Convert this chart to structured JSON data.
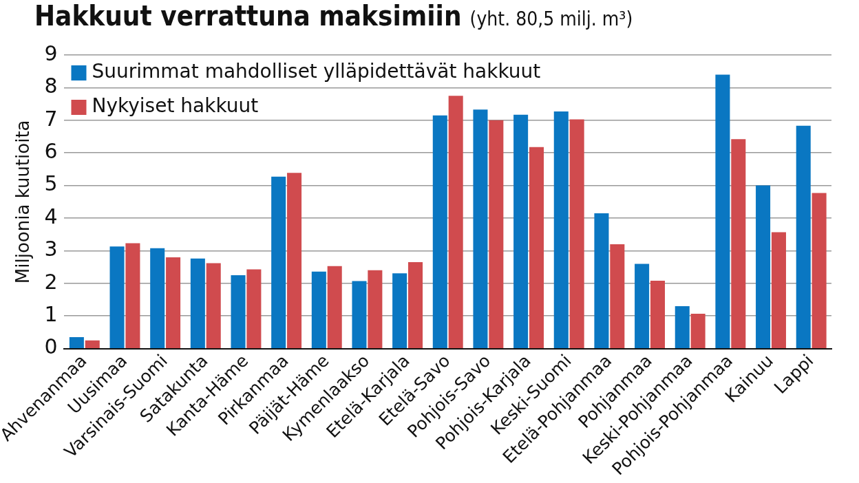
{
  "chart_data": {
    "type": "bar",
    "title": "Hakkuut verrattuna maksimiin",
    "subtitle": "(yht. 80,5 milj. m³)",
    "ylabel": "Miljoonia kuutioita",
    "categories": [
      "Ahvenanmaa",
      "Uusimaa",
      "Varsinais-Suomi",
      "Satakunta",
      "Kanta-Häme",
      "Pirkanmaa",
      "Päijät-Häme",
      "Kymenlaakso",
      "Etelä-Karjala",
      "Etelä-Savo",
      "Pohjois-Savo",
      "Pohjois-Karjala",
      "Keski-Suomi",
      "Etelä-Pohjanmaa",
      "Pohjanmaa",
      "Keski-Pohjanmaa",
      "Pohjois-Pohjanmaa",
      "Kainuu",
      "Lappi"
    ],
    "series": [
      {
        "name": "Suurimmat mahdolliset ylläpidettävät hakkuut",
        "color": "#0a77c2",
        "values": [
          0.35,
          3.13,
          3.08,
          2.76,
          2.25,
          5.27,
          2.36,
          2.07,
          2.31,
          7.15,
          7.33,
          7.17,
          7.27,
          4.15,
          2.6,
          1.3,
          8.4,
          5.0,
          6.83
        ]
      },
      {
        "name": "Nykyiset hakkuut",
        "color": "#d04b4e",
        "values": [
          0.25,
          3.23,
          2.8,
          2.62,
          2.43,
          5.39,
          2.53,
          2.4,
          2.65,
          7.75,
          7.0,
          6.18,
          7.03,
          3.2,
          2.08,
          1.07,
          6.42,
          3.57,
          4.77
        ]
      }
    ],
    "ylim": [
      0,
      9
    ],
    "yticks": [
      0,
      1,
      2,
      3,
      4,
      5,
      6,
      7,
      8,
      9
    ],
    "grid": "y",
    "legend": "top left"
  }
}
